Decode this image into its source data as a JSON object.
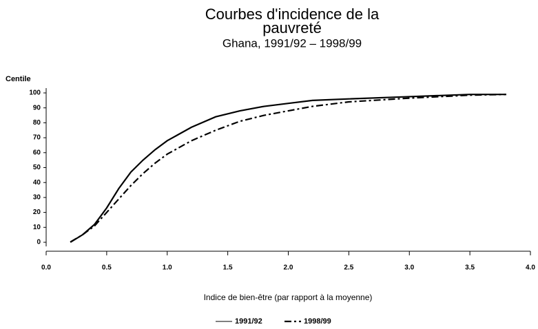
{
  "chart_data": {
    "type": "line",
    "title": [
      "Courbes d'incidence de la",
      "pauvreté"
    ],
    "subtitle": "Ghana, 1991/92 – 1998/99",
    "y_label": "Centile",
    "x_label": "Indice de bien-être (par rapport à la moyenne)",
    "x": [
      0.2,
      0.3,
      0.4,
      0.5,
      0.6,
      0.7,
      0.8,
      0.9,
      1.0,
      1.2,
      1.4,
      1.6,
      1.8,
      2.0,
      2.2,
      2.5,
      3.0,
      3.5,
      3.8
    ],
    "series": [
      {
        "name": "1991/92",
        "color": "#000000",
        "dash": "none",
        "values": [
          0,
          5,
          12,
          23,
          36,
          47,
          55,
          62,
          68,
          77,
          84,
          88,
          91,
          93,
          95,
          96,
          97.5,
          99,
          99
        ]
      },
      {
        "name": "1998/99",
        "color": "#000000",
        "dash": "10 4 3 4",
        "values": [
          0.2,
          5,
          11,
          20,
          29,
          38,
          46,
          53,
          59,
          68,
          75,
          81,
          85,
          88,
          91,
          94,
          96.5,
          98.5,
          99
        ]
      }
    ],
    "xlim": [
      0,
      4
    ],
    "ylim": [
      0,
      100
    ],
    "xticks": [
      {
        "value": 0,
        "label": "0.0"
      },
      0.5,
      {
        "value": 1,
        "label": "1.0"
      },
      1.5,
      {
        "value": 2,
        "label": "2.0"
      },
      2.5,
      {
        "value": 3,
        "label": "3.0"
      },
      3.5,
      {
        "value": 4,
        "label": "4.0"
      }
    ],
    "yticks": [
      0,
      10,
      20,
      30,
      40,
      50,
      60,
      70,
      80,
      90,
      100
    ],
    "grid": false,
    "legend": "bottom"
  }
}
